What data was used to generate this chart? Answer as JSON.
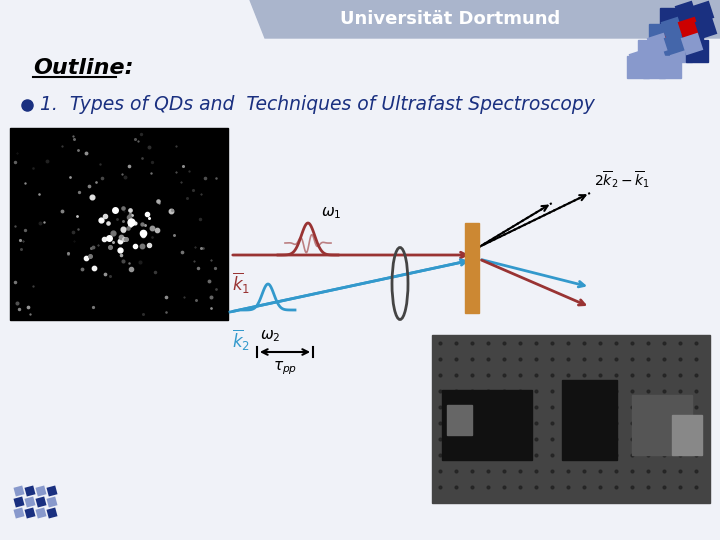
{
  "background_color": "#f0f2f8",
  "header_bar_color": "#aab5cc",
  "header_text": "Universität Dortmund",
  "header_text_color": "#ffffff",
  "outline_text": "Outline:",
  "outline_color": "#000000",
  "bullet_text": "1.  Types of QDs and  Techniques of Ultrafast Spectroscopy",
  "bullet_color": "#1a3080",
  "dark_blue": "#1a3080",
  "logo_blue_dark": "#1a3080",
  "logo_blue_mid": "#4466aa",
  "logo_blue_light": "#8899cc",
  "logo_red": "#cc0000",
  "red_beam": "#993333",
  "blue_beam": "#3399cc",
  "orange_sample": "#cc8833"
}
